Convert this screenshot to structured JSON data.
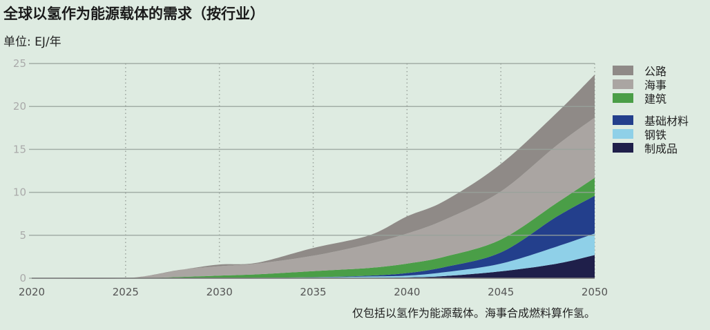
{
  "title": "全球以氢作为能源载体的需求（按行业）",
  "unit": "单位: EJ/年",
  "note": "仅包括以氢作为能源载体。海事合成燃料算作氢。",
  "chart_data": {
    "type": "area",
    "stacked": true,
    "title": "全球以氢作为能源载体的需求（按行业）",
    "ylabel": "单位: EJ/年",
    "xlim": [
      2020,
      2050
    ],
    "ylim": [
      0,
      25
    ],
    "xticks": [
      "2020",
      "2025",
      "2030",
      "2035",
      "2040",
      "2045",
      "2050"
    ],
    "yticks": [
      "0",
      "5",
      "10",
      "15",
      "20",
      "25"
    ],
    "grid": true,
    "legend_position": "right",
    "x": [
      2020,
      2025,
      2028,
      2030,
      2032,
      2035,
      2038,
      2040,
      2042,
      2045,
      2048,
      2050
    ],
    "series": [
      {
        "name": "制成品",
        "color": "#1f1f4a",
        "values": [
          0,
          0,
          0,
          0,
          0,
          0.02,
          0.05,
          0.1,
          0.25,
          0.8,
          1.7,
          2.7
        ]
      },
      {
        "name": "钢铁",
        "color": "#8fd0e8",
        "values": [
          0,
          0,
          0,
          0,
          0.05,
          0.08,
          0.15,
          0.2,
          0.45,
          0.9,
          2.0,
          2.5
        ]
      },
      {
        "name": "基础材料",
        "color": "#233f8c",
        "values": [
          0,
          0,
          0,
          0,
          0,
          0.02,
          0.1,
          0.3,
          0.6,
          1.3,
          3.5,
          4.4
        ]
      },
      {
        "name": "建筑",
        "color": "#4a9e47",
        "values": [
          0,
          0,
          0.15,
          0.3,
          0.4,
          0.7,
          0.9,
          1.1,
          1.2,
          1.5,
          1.6,
          2.1
        ]
      },
      {
        "name": "海事",
        "color": "#aaa5a2",
        "values": [
          0,
          0,
          0.85,
          1.1,
          1.25,
          1.8,
          2.8,
          3.5,
          4.3,
          5.6,
          6.7,
          7.0
        ]
      },
      {
        "name": "公路",
        "color": "#8f8a87",
        "values": [
          0,
          0,
          0,
          0.2,
          0.1,
          0.9,
          1.0,
          2.0,
          2.2,
          3.2,
          3.8,
          5.0
        ]
      }
    ]
  }
}
